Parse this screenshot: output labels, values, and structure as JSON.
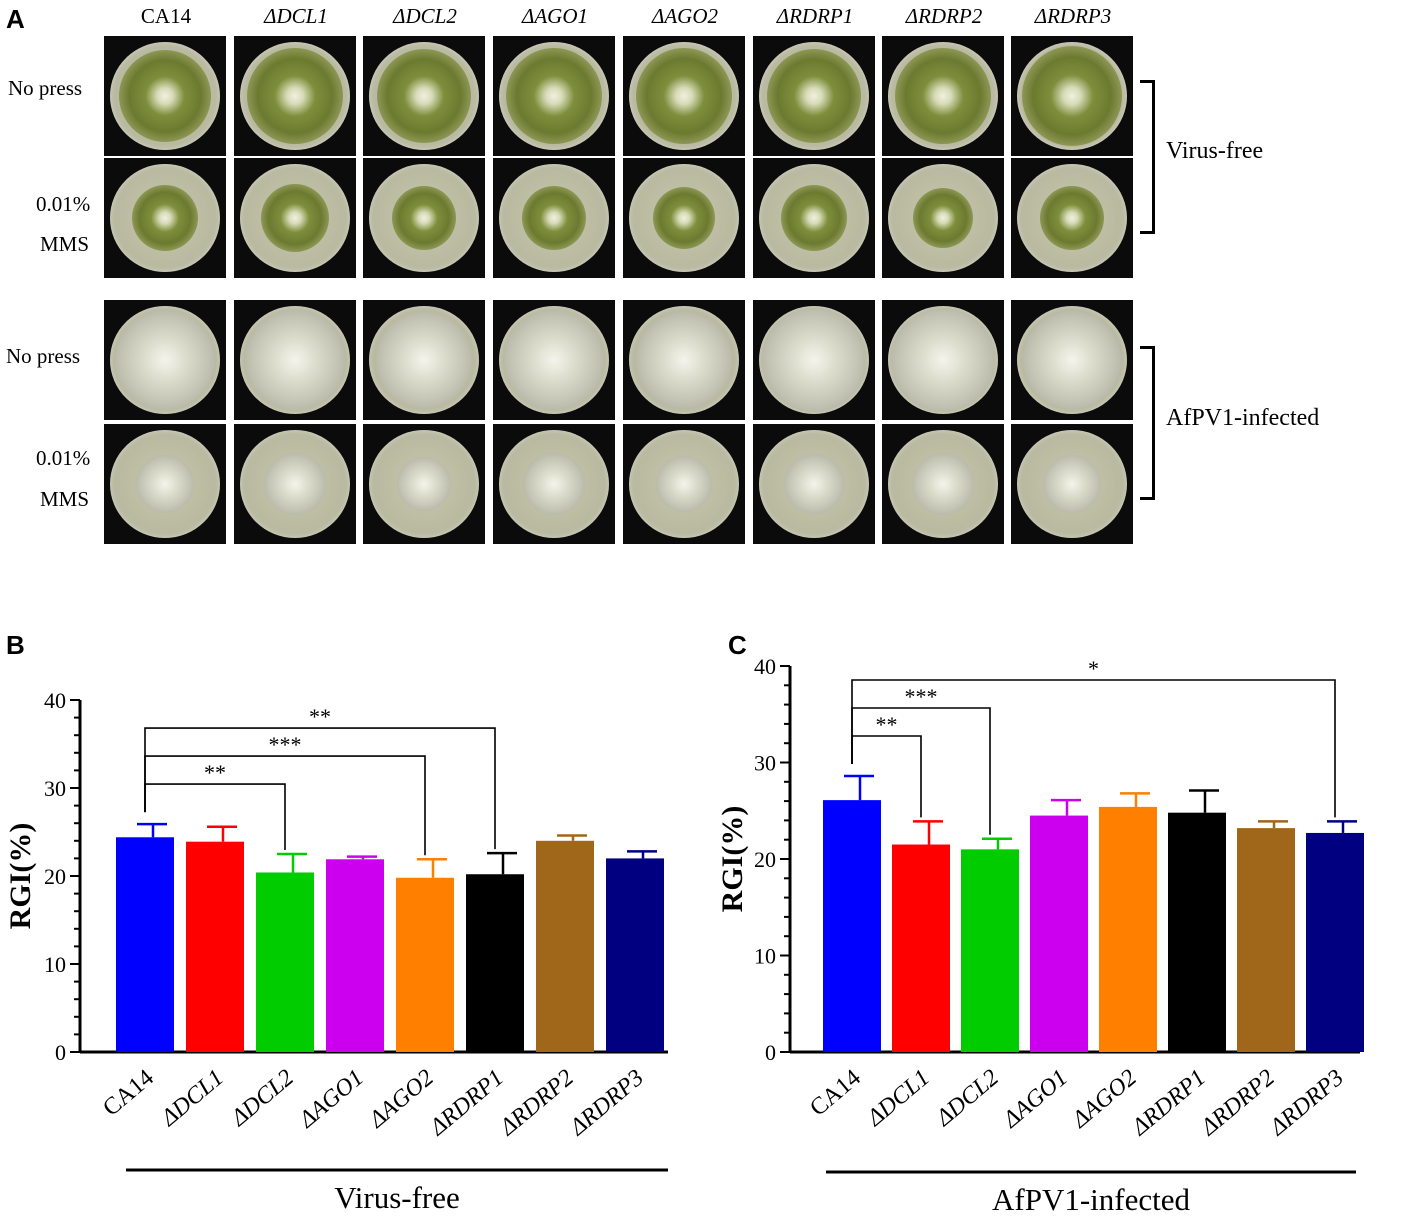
{
  "panel_a": {
    "letter": "A",
    "column_headers": [
      "CA14",
      "ΔDCL1",
      "ΔDCL2",
      "ΔAGO1",
      "ΔAGO2",
      "ΔRDRP1",
      "ΔRDRP2",
      "ΔRDRP3"
    ],
    "row_labels": {
      "no_press_1": "No press",
      "mms_1_line1": "0.01%",
      "mms_1_line2": "MMS",
      "no_press_2": "No press",
      "mms_2_line1": "0.01%",
      "mms_2_line2": "MMS"
    },
    "groups": {
      "virus_free": "Virus-free",
      "infected": "AfPV1-infected"
    }
  },
  "chart_data": [
    {
      "type": "bar",
      "panel": "B",
      "categories": [
        "CA14",
        "ΔDCL1",
        "ΔDCL2",
        "ΔAGO1",
        "ΔAGO2",
        "ΔRDRP1",
        "ΔRDRP2",
        "ΔRDRP3"
      ],
      "values": [
        24.4,
        23.9,
        20.4,
        21.9,
        19.8,
        20.2,
        24.0,
        22.0
      ],
      "errors": [
        1.5,
        1.7,
        2.1,
        0.3,
        2.1,
        2.4,
        0.6,
        0.8
      ],
      "colors": [
        "#0000ff",
        "#ff0000",
        "#00cc00",
        "#cc00ee",
        "#ff7f00",
        "#000000",
        "#a0661a",
        "#000080"
      ],
      "ylabel": "RGI(%)",
      "xlabel": "Virus-free",
      "ylim": [
        0,
        40
      ],
      "yticks": [
        0,
        10,
        20,
        30,
        40
      ],
      "grid": false,
      "significance": [
        {
          "from": "CA14",
          "to": "ΔDCL2",
          "label": "**"
        },
        {
          "from": "CA14",
          "to": "ΔAGO2",
          "label": "***"
        },
        {
          "from": "CA14",
          "to": "ΔRDRP1",
          "label": "**"
        }
      ]
    },
    {
      "type": "bar",
      "panel": "C",
      "categories": [
        "CA14",
        "ΔDCL1",
        "ΔDCL2",
        "ΔAGO1",
        "ΔAGO2",
        "ΔRDRP1",
        "ΔRDRP2",
        "ΔRDRP3"
      ],
      "values": [
        26.1,
        21.5,
        21.0,
        24.5,
        25.4,
        24.8,
        23.2,
        22.7
      ],
      "errors": [
        2.5,
        2.4,
        1.1,
        1.6,
        1.4,
        2.3,
        0.7,
        1.2
      ],
      "colors": [
        "#0000ff",
        "#ff0000",
        "#00cc00",
        "#cc00ee",
        "#ff7f00",
        "#000000",
        "#a0661a",
        "#000080"
      ],
      "ylabel": "RGI(%)",
      "xlabel": "AfPV1-infected",
      "ylim": [
        0,
        40
      ],
      "yticks": [
        0,
        10,
        20,
        30,
        40
      ],
      "grid": false,
      "significance": [
        {
          "from": "CA14",
          "to": "ΔDCL1",
          "label": "**"
        },
        {
          "from": "CA14",
          "to": "ΔDCL2",
          "label": "***"
        },
        {
          "from": "CA14",
          "to": "ΔRDRP3",
          "label": "*"
        }
      ]
    }
  ]
}
